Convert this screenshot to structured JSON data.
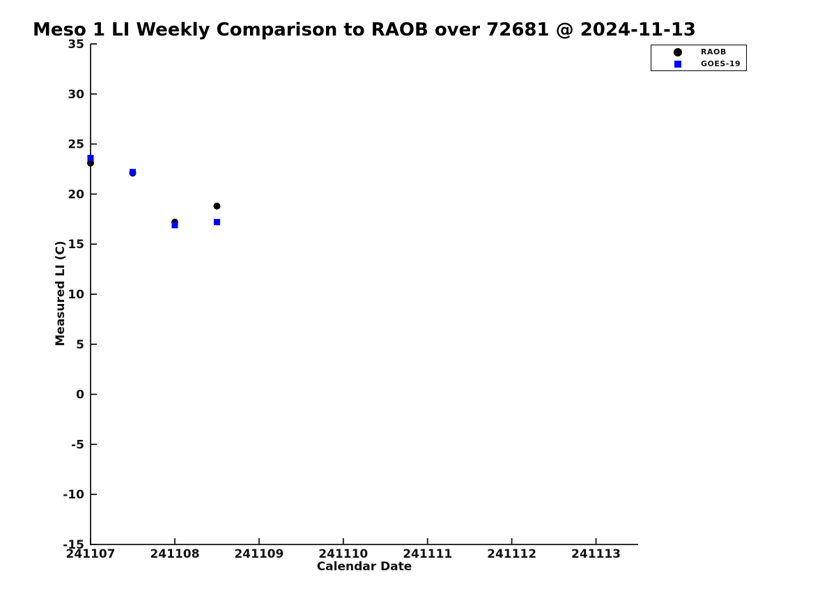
{
  "chart_data": {
    "type": "scatter",
    "title": "Meso 1 LI Weekly Comparison to RAOB over 72681 @ 2024-11-13",
    "xlabel": "Calendar Date",
    "ylabel": "Measured LI (C)",
    "xlim": [
      241107,
      241113.5
    ],
    "ylim": [
      -15,
      35
    ],
    "x_ticks": [
      241107,
      241108,
      241109,
      241110,
      241111,
      241112,
      241113
    ],
    "y_ticks": [
      35,
      30,
      25,
      20,
      15,
      10,
      5,
      0,
      -5,
      -10,
      -15
    ],
    "grid": false,
    "legend_position": "top-right-outside",
    "background_color": "#ffffff",
    "series": [
      {
        "name": "RAOB",
        "marker": "circle",
        "color": "#000000",
        "x": [
          241107.0,
          241107.5,
          241108.0,
          241108.5
        ],
        "y": [
          23.1,
          22.1,
          17.2,
          18.8
        ]
      },
      {
        "name": "GOES-19",
        "marker": "square",
        "color": "#0000ff",
        "x": [
          241107.0,
          241107.5,
          241108.0,
          241108.5
        ],
        "y": [
          23.6,
          22.2,
          16.9,
          17.2
        ]
      }
    ]
  }
}
